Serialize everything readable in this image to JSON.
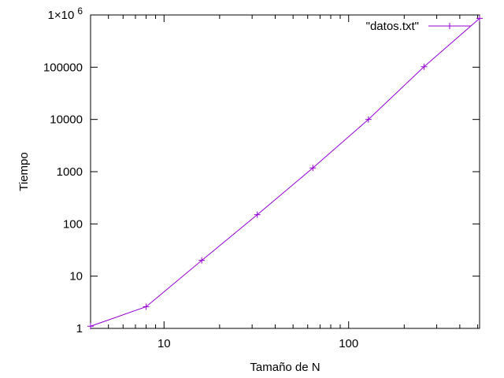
{
  "chart_data": {
    "type": "line",
    "x_scale": "log",
    "y_scale": "log",
    "xlabel": "Tamaño de N",
    "ylabel": "Tiempo",
    "xlim": [
      4,
      512
    ],
    "ylim": [
      1,
      1000000
    ],
    "grid": false,
    "legend_position": "top-right",
    "x_ticks": [
      {
        "value": 10,
        "label": "10"
      },
      {
        "value": 100,
        "label": "100"
      }
    ],
    "y_ticks": [
      {
        "value": 1,
        "label": "1"
      },
      {
        "value": 10,
        "label": "10"
      },
      {
        "value": 100,
        "label": "100"
      },
      {
        "value": 1000,
        "label": "1000"
      },
      {
        "value": 10000,
        "label": "10000"
      },
      {
        "value": 100000,
        "label": "100000"
      },
      {
        "value": 1000000,
        "label": "1×10 6"
      }
    ],
    "series": [
      {
        "name": "\"datos.txt\"",
        "color": "#9400d3",
        "marker": "plus",
        "x": [
          4,
          8,
          16,
          32,
          64,
          128,
          256,
          512
        ],
        "y": [
          1.1,
          2.6,
          20,
          150,
          1180,
          10000,
          102000,
          860000
        ]
      }
    ]
  }
}
